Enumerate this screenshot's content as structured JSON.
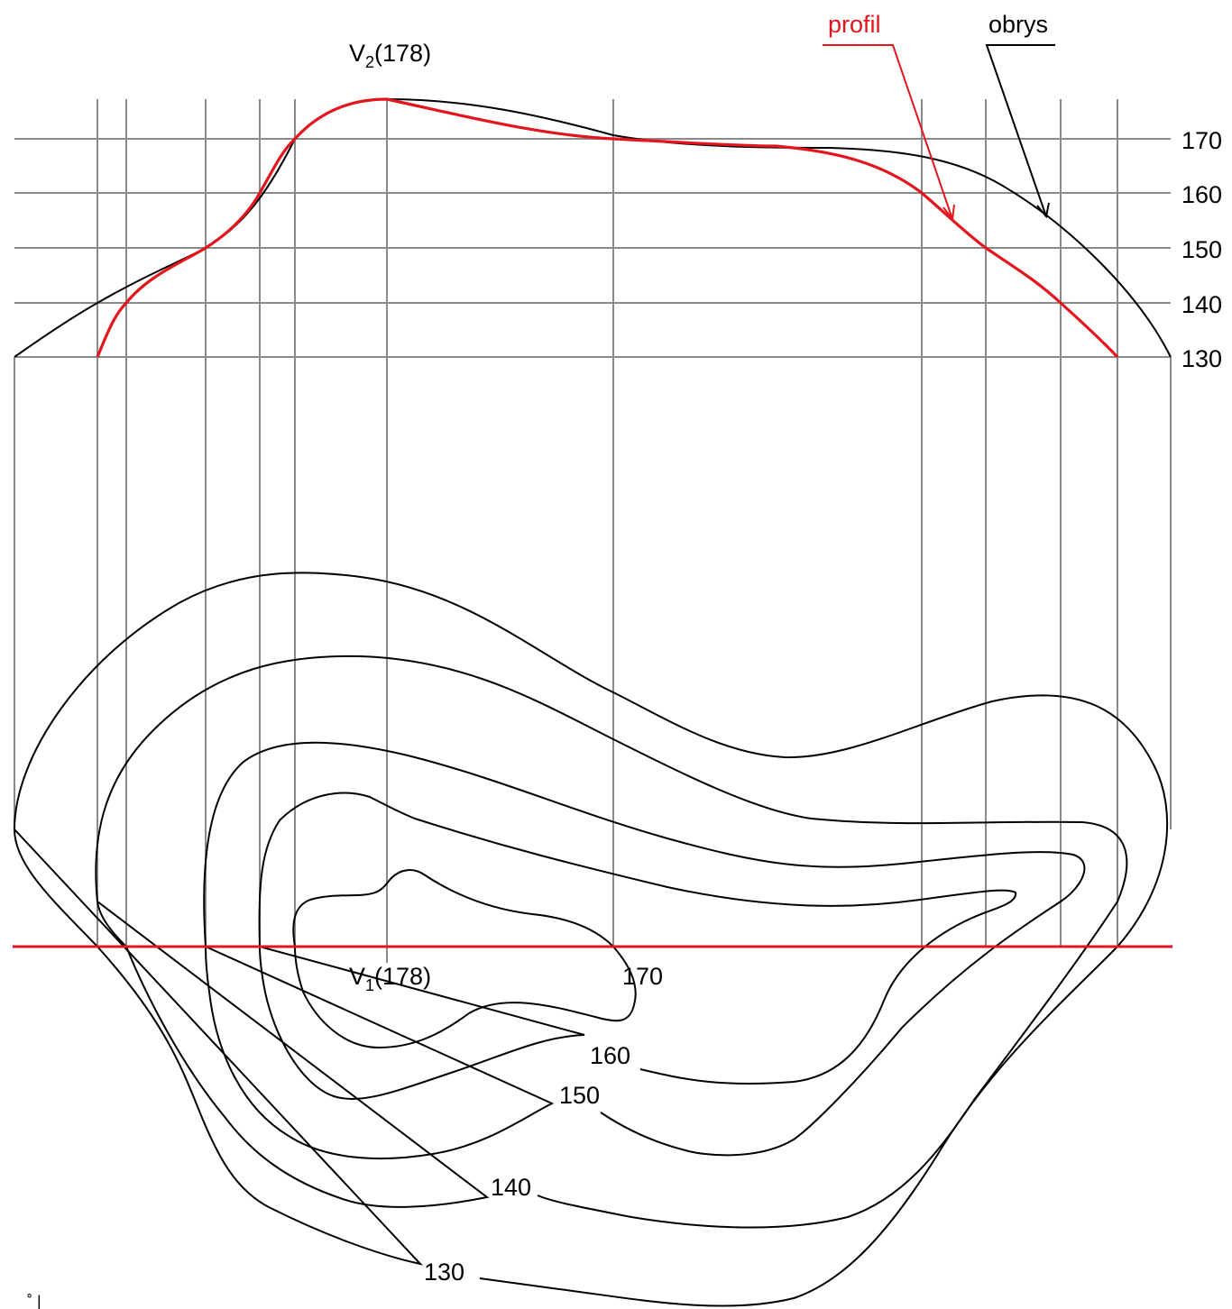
{
  "colors": {
    "profile": "#e3161e",
    "outline": "#000000",
    "grid": "#8a8a8a",
    "contour": "#000000"
  },
  "legend": {
    "profile_label": "profil",
    "outline_label": "obrys"
  },
  "peaks": {
    "profile_peak_name": "V",
    "profile_peak_sub": "2",
    "profile_peak_value": "(178)",
    "map_peak_name": "V",
    "map_peak_sub": "1",
    "map_peak_value": "(178)"
  },
  "profile_scale": {
    "levels": [
      "170",
      "160",
      "150",
      "140",
      "130"
    ]
  },
  "contour_labels": {
    "c170": "170",
    "c160": "160",
    "c150": "150",
    "c140": "140",
    "c130": "130"
  },
  "footer": {
    "corner_mark": "˚ |"
  }
}
